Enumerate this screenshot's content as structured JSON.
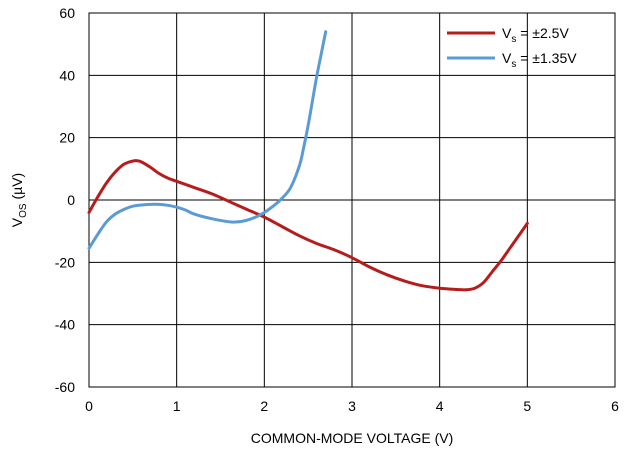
{
  "chart_data": {
    "type": "line",
    "title": "",
    "xlabel": "COMMON-MODE VOLTAGE (V)",
    "ylabel": {
      "main": "V",
      "sub": "OS",
      "rest": " (µV)"
    },
    "xlim": [
      0,
      6
    ],
    "ylim": [
      -60,
      60
    ],
    "xticks": [
      0,
      1,
      2,
      3,
      4,
      5,
      6
    ],
    "yticks": [
      -60,
      -40,
      -20,
      0,
      20,
      40,
      60
    ],
    "grid": true,
    "legend_position": "top-right",
    "series": [
      {
        "name": {
          "main": "V",
          "sub": "s",
          "rest": " = ±2.5V"
        },
        "color": "#B71C1C",
        "x": [
          0,
          0.1,
          0.2,
          0.3,
          0.4,
          0.5,
          0.55,
          0.6,
          0.7,
          0.8,
          0.9,
          1.0,
          1.2,
          1.4,
          1.6,
          1.8,
          2.0,
          2.2,
          2.4,
          2.6,
          2.8,
          3.0,
          3.2,
          3.4,
          3.6,
          3.8,
          4.0,
          4.2,
          4.3,
          4.4,
          4.5,
          4.6,
          4.7,
          4.8,
          4.9,
          5.0
        ],
        "y": [
          -4,
          1,
          5.5,
          9,
          11.5,
          12.5,
          12.6,
          12.2,
          10.5,
          8.5,
          7,
          6,
          4,
          2,
          -0.5,
          -3,
          -5.5,
          -8.5,
          -11.5,
          -14,
          -16,
          -18.5,
          -21.5,
          -24,
          -26,
          -27.5,
          -28.3,
          -28.7,
          -28.8,
          -28.3,
          -26.5,
          -23,
          -19.5,
          -15.5,
          -11.5,
          -7.5
        ]
      },
      {
        "name": {
          "main": "V",
          "sub": "s",
          "rest": " = ±1.35V"
        },
        "color": "#5B9BD5",
        "x": [
          0,
          0.1,
          0.2,
          0.3,
          0.4,
          0.5,
          0.6,
          0.7,
          0.8,
          0.9,
          1.0,
          1.1,
          1.2,
          1.4,
          1.6,
          1.7,
          1.8,
          1.9,
          2.0,
          2.1,
          2.2,
          2.3,
          2.4,
          2.45,
          2.5,
          2.55,
          2.6,
          2.65,
          2.7
        ],
        "y": [
          -15.5,
          -11,
          -7,
          -4.5,
          -3,
          -2,
          -1.6,
          -1.4,
          -1.4,
          -1.7,
          -2.3,
          -3.2,
          -4.5,
          -6,
          -7,
          -7,
          -6.5,
          -5.5,
          -4,
          -2,
          0.5,
          4,
          11,
          17,
          24,
          32,
          40,
          47,
          54
        ]
      }
    ]
  }
}
